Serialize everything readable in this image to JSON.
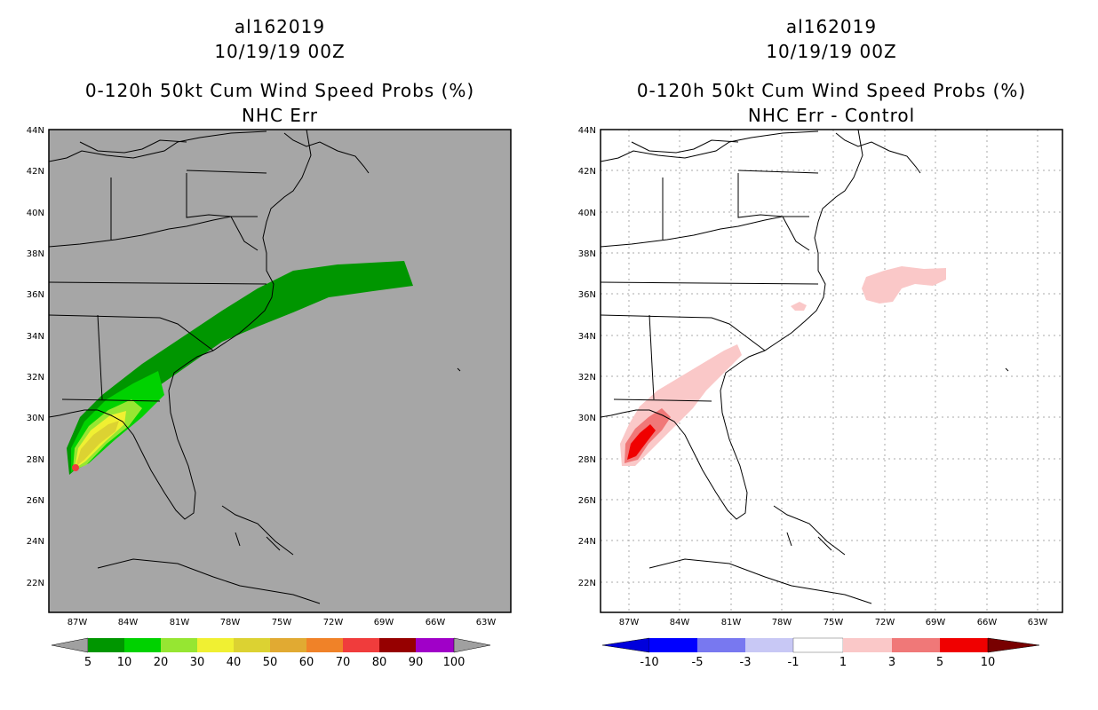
{
  "left": {
    "storm_id": "al162019",
    "datetime": "10/19/19 00Z",
    "product": "0-120h 50kt Cum Wind Speed Probs (%)",
    "subtitle": "NHC Err",
    "colorbar": {
      "labels": [
        "5",
        "10",
        "20",
        "30",
        "40",
        "50",
        "60",
        "70",
        "80",
        "90",
        "100"
      ],
      "colors": [
        "#009600",
        "#00d200",
        "#96e632",
        "#f0f032",
        "#dcd232",
        "#e1aa32",
        "#f08228",
        "#f03c3c",
        "#960000",
        "#a000c8"
      ],
      "end_color": "#a0a0a0"
    },
    "background": "#a6a6a6"
  },
  "right": {
    "storm_id": "al162019",
    "datetime": "10/19/19 00Z",
    "product": "0-120h 50kt Cum Wind Speed Probs (%)",
    "subtitle": "NHC Err - Control",
    "colorbar": {
      "labels": [
        "-10",
        "-5",
        "-3",
        "-1",
        "1",
        "3",
        "5",
        "10"
      ],
      "colors": [
        "#0000dc",
        "#0000ff",
        "#7878f0",
        "#c8c8f5",
        "#ffffff",
        "#fac8c8",
        "#f07878",
        "#f00000",
        "#780000"
      ]
    },
    "background": "#ffffff"
  },
  "axes": {
    "lat_labels": [
      "44N",
      "42N",
      "40N",
      "38N",
      "36N",
      "34N",
      "32N",
      "30N",
      "28N",
      "26N",
      "24N",
      "22N"
    ],
    "lon_labels": [
      "87W",
      "84W",
      "81W",
      "78W",
      "75W",
      "72W",
      "69W",
      "66W",
      "63W"
    ]
  },
  "colors": {
    "coast": "#000000",
    "grid": "#aaaaaa"
  }
}
